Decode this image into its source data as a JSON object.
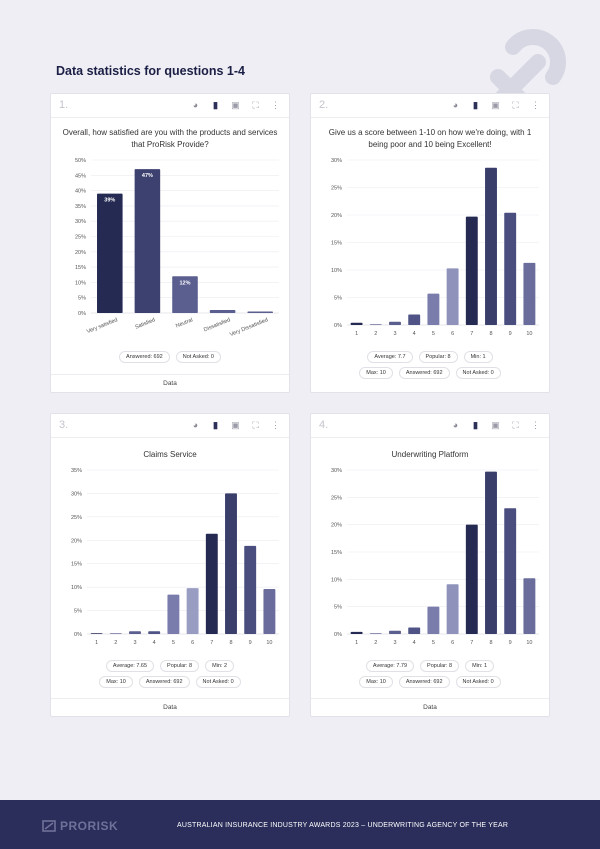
{
  "page_title": "Data statistics for questions 1-4",
  "toolbar_icons": [
    "pie-chart-icon",
    "bar-chart-icon",
    "export-icon",
    "expand-icon",
    "more-icon"
  ],
  "footer": {
    "logo": "PRORISK",
    "text": "AUSTRALIAN INSURANCE INDUSTRY AWARDS 2023 – UNDERWRITING AGENCY OF THE YEAR"
  },
  "colors": {
    "background": "#eeeef4",
    "footer": "#2b2e5b",
    "bar_dark": "#252a52",
    "bar_mid": "#4a4e7e",
    "bar_light": "#8f92bb"
  },
  "cards": [
    {
      "number": "1.",
      "question": "Overall, how satisfied are you with the products and services that ProRisk Provide?",
      "stats": [
        "Answered: 692",
        "Not Asked: 0"
      ],
      "footer": "Data"
    },
    {
      "number": "2.",
      "question": "Give us a score between 1-10 on how we're doing, with 1 being poor and 10 being Excellent!",
      "stats": [
        "Average: 7.7",
        "Popular: 8",
        "Min: 1",
        "Max: 10",
        "Answered: 692",
        "Not Asked: 0"
      ],
      "footer": ""
    },
    {
      "number": "3.",
      "question": "Claims Service",
      "stats": [
        "Average: 7.65",
        "Popular: 8",
        "Min: 2",
        "Max: 10",
        "Answered: 692",
        "Not Asked: 0"
      ],
      "footer": "Data"
    },
    {
      "number": "4.",
      "question": "Underwriting Platform",
      "stats": [
        "Average: 7.79",
        "Popular: 8",
        "Min: 1",
        "Max: 10",
        "Answered: 692",
        "Not Asked: 0"
      ],
      "footer": "Data"
    }
  ],
  "chart_data": [
    {
      "type": "bar",
      "title": "Overall, how satisfied are you with the products and services that ProRisk Provide?",
      "categories": [
        "Very satisfied",
        "Satisfied",
        "Neutral",
        "Dissatisfied",
        "Very Dissatisfied"
      ],
      "values": [
        39,
        47,
        12,
        1,
        0.5
      ],
      "data_labels": [
        "39%",
        "47%",
        "12%",
        "",
        ""
      ],
      "ylim": [
        0,
        50
      ],
      "yticks": [
        "0%",
        "5%",
        "10%",
        "15%",
        "20%",
        "25%",
        "30%",
        "35%",
        "40%",
        "45%",
        "50%"
      ],
      "colors": [
        "#252a52",
        "#3d4170",
        "#5b5f8f",
        "#5b5f8f",
        "#5b5f8f"
      ]
    },
    {
      "type": "bar",
      "title": "Give us a score between 1-10 on how we're doing, with 1 being poor and 10 being Excellent!",
      "categories": [
        "1",
        "2",
        "3",
        "4",
        "5",
        "6",
        "7",
        "8",
        "9",
        "10"
      ],
      "values": [
        0.4,
        0.1,
        0.6,
        1.9,
        5.7,
        10.3,
        19.7,
        28.6,
        20.4,
        11.3
      ],
      "ylim": [
        0,
        30
      ],
      "yticks": [
        "0%",
        "5%",
        "10%",
        "15%",
        "20%",
        "25%",
        "30%"
      ],
      "colors": [
        "#252a52",
        "#6a6d9c",
        "#5b5f8f",
        "#4f5385",
        "#7a7dab",
        "#8f92bb",
        "#252a52",
        "#3a3e6b",
        "#4a4e7e",
        "#6a6d9c"
      ]
    },
    {
      "type": "bar",
      "title": "Claims Service",
      "categories": [
        "1",
        "2",
        "3",
        "4",
        "5",
        "6",
        "7",
        "8",
        "9",
        "10"
      ],
      "values": [
        0,
        0.1,
        0.6,
        0.6,
        8.4,
        9.8,
        21.4,
        30.0,
        18.8,
        9.6
      ],
      "ylim": [
        0,
        35
      ],
      "yticks": [
        "0%",
        "5%",
        "10%",
        "15%",
        "20%",
        "25%",
        "30%",
        "35%"
      ],
      "colors": [
        "#252a52",
        "#6a6d9c",
        "#5b5f8f",
        "#4f5385",
        "#7a7dab",
        "#9a9dc2",
        "#252a52",
        "#3a3e6b",
        "#4a4e7e",
        "#6a6d9c"
      ]
    },
    {
      "type": "bar",
      "title": "Underwriting Platform",
      "categories": [
        "1",
        "2",
        "3",
        "4",
        "5",
        "6",
        "7",
        "8",
        "9",
        "10"
      ],
      "values": [
        0.4,
        0.1,
        0.6,
        1.2,
        5.0,
        9.1,
        20.0,
        29.7,
        23.0,
        10.2
      ],
      "ylim": [
        0,
        30
      ],
      "yticks": [
        "0%",
        "5%",
        "10%",
        "15%",
        "20%",
        "25%",
        "30%"
      ],
      "colors": [
        "#252a52",
        "#6a6d9c",
        "#5b5f8f",
        "#4f5385",
        "#7a7dab",
        "#8f92bb",
        "#252a52",
        "#3a3e6b",
        "#4a4e7e",
        "#6a6d9c"
      ]
    }
  ]
}
